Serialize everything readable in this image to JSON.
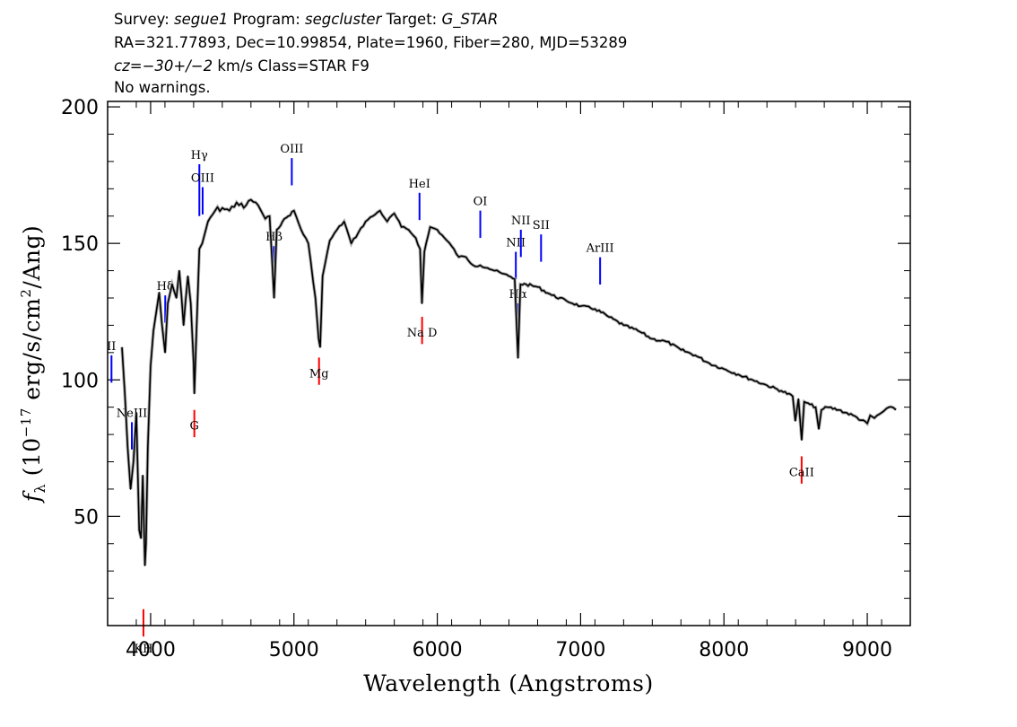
{
  "header": {
    "survey_label": "Survey:",
    "survey_value": "segue1",
    "program_label": "Program:",
    "program_value": "segcluster",
    "target_label": "Target:",
    "target_value": "G_STAR",
    "line2": "RA=321.77893, Dec=10.99854, Plate=1960, Fiber=280, MJD=53289",
    "cz_label": "cz=",
    "cz_value": "−30+/−2",
    "cz_rest": " km/s Class=STAR F9",
    "line4": "No warnings."
  },
  "chart_data": {
    "type": "line",
    "xlabel": "Wavelength (Angstroms)",
    "ylabel_prefix": "f",
    "ylabel_sub": "λ",
    "ylabel_rest_a": " (10",
    "ylabel_exp": "−17",
    "ylabel_rest_b": " erg/s/cm",
    "ylabel_exp2": "2",
    "ylabel_rest_c": "/Ang)",
    "xlim": [
      3700,
      9300
    ],
    "ylim": [
      10,
      202
    ],
    "xticks": [
      4000,
      5000,
      6000,
      7000,
      8000,
      9000
    ],
    "xtick_labels": [
      "4000",
      "5000",
      "6000",
      "7000",
      "8000",
      "9000"
    ],
    "yticks": [
      50,
      100,
      150,
      200
    ],
    "ytick_labels": [
      "50",
      "100",
      "150",
      "200"
    ],
    "series": [
      {
        "color": "#000000",
        "x": [
          3800,
          3820,
          3840,
          3860,
          3880,
          3900,
          3920,
          3933,
          3945,
          3960,
          3968,
          3980,
          4000,
          4020,
          4040,
          4060,
          4080,
          4101,
          4120,
          4150,
          4180,
          4200,
          4230,
          4260,
          4280,
          4300,
          4305,
          4320,
          4340,
          4360,
          4380,
          4400,
          4450,
          4500,
          4550,
          4600,
          4650,
          4700,
          4750,
          4800,
          4830,
          4861,
          4880,
          4920,
          4960,
          5000,
          5050,
          5100,
          5150,
          5172,
          5183,
          5200,
          5250,
          5300,
          5350,
          5400,
          5450,
          5500,
          5550,
          5600,
          5650,
          5700,
          5750,
          5800,
          5850,
          5880,
          5893,
          5910,
          5950,
          6000,
          6050,
          6100,
          6150,
          6200,
          6250,
          6300,
          6350,
          6400,
          6450,
          6500,
          6540,
          6563,
          6580,
          6620,
          6700,
          6800,
          6900,
          7000,
          7100,
          7200,
          7300,
          7400,
          7500,
          7600,
          7700,
          7800,
          7900,
          8000,
          8100,
          8200,
          8300,
          8400,
          8480,
          8498,
          8520,
          8542,
          8560,
          8600,
          8640,
          8662,
          8680,
          8720,
          8800,
          8900,
          9000,
          9020,
          9050,
          9100,
          9150,
          9200
        ],
        "y": [
          112,
          95,
          75,
          60,
          70,
          88,
          45,
          42,
          65,
          32,
          40,
          75,
          105,
          118,
          125,
          132,
          120,
          110,
          128,
          135,
          130,
          140,
          120,
          138,
          128,
          106,
          95,
          118,
          148,
          150,
          154,
          158,
          162,
          163,
          162,
          165,
          163,
          166,
          164,
          159,
          160,
          130,
          155,
          158,
          160,
          162,
          155,
          150,
          130,
          115,
          112,
          138,
          151,
          155,
          158,
          150,
          154,
          158,
          160,
          162,
          158,
          161,
          156,
          155,
          152,
          148,
          128,
          147,
          156,
          155,
          152,
          149,
          145,
          145,
          142,
          142,
          141,
          140,
          139,
          138,
          137,
          108,
          135,
          135,
          134,
          131,
          129,
          127,
          126,
          123,
          120,
          118,
          115,
          114,
          111,
          109,
          106,
          104,
          102,
          100,
          98,
          96,
          94,
          85,
          93,
          78,
          92,
          91,
          90,
          82,
          89,
          90,
          89,
          87,
          84,
          87,
          86,
          88,
          90,
          89
        ]
      }
    ],
    "line_markers": [
      {
        "label": "KH",
        "wavelength": 3950,
        "kind": "absorption",
        "color": "#ff0000"
      },
      {
        "label": "G",
        "wavelength": 4305,
        "kind": "absorption",
        "color": "#ff0000"
      },
      {
        "label": "Mg",
        "wavelength": 5175,
        "kind": "absorption",
        "color": "#ff0000"
      },
      {
        "label": "Na D",
        "wavelength": 5894,
        "kind": "absorption",
        "color": "#ff0000"
      },
      {
        "label": "CaII",
        "wavelength": 8542,
        "kind": "absorption",
        "color": "#ff0000"
      },
      {
        "label": "II",
        "wavelength": 3727,
        "kind": "emission",
        "color": "#0000ff"
      },
      {
        "label": "NeIII",
        "wavelength": 3869,
        "kind": "emission",
        "color": "#0000ff"
      },
      {
        "label": "Hδ",
        "wavelength": 4102,
        "kind": "emission",
        "color": "#0000ff"
      },
      {
        "label": "Hγ",
        "wavelength": 4340,
        "kind": "emission",
        "color": "#0000ff"
      },
      {
        "label": "OIII",
        "wavelength": 4363,
        "kind": "emission",
        "color": "#0000ff"
      },
      {
        "label": "Hβ",
        "wavelength": 4861,
        "kind": "emission",
        "color": "#0000ff"
      },
      {
        "label": "OIII",
        "wavelength": 4985,
        "kind": "emission",
        "color": "#0000ff"
      },
      {
        "label": "HeI",
        "wavelength": 5876,
        "kind": "emission",
        "color": "#0000ff"
      },
      {
        "label": "OI",
        "wavelength": 6300,
        "kind": "emission",
        "color": "#0000ff"
      },
      {
        "label": "NII",
        "wavelength": 6548,
        "kind": "emission",
        "color": "#0000ff"
      },
      {
        "label": "Hα",
        "wavelength": 6563,
        "kind": "emission",
        "color": "#0000ff"
      },
      {
        "label": "NII",
        "wavelength": 6583,
        "kind": "emission",
        "color": "#0000ff"
      },
      {
        "label": "SII",
        "wavelength": 6724,
        "kind": "emission",
        "color": "#0000ff"
      },
      {
        "label": "ArIII",
        "wavelength": 7136,
        "kind": "emission",
        "color": "#0000ff"
      }
    ],
    "grid": false,
    "colors": {
      "flux": "#000000",
      "error": "#aaaaaa",
      "emission_marker": "#0000ff",
      "absorption_marker": "#ff0000"
    }
  }
}
